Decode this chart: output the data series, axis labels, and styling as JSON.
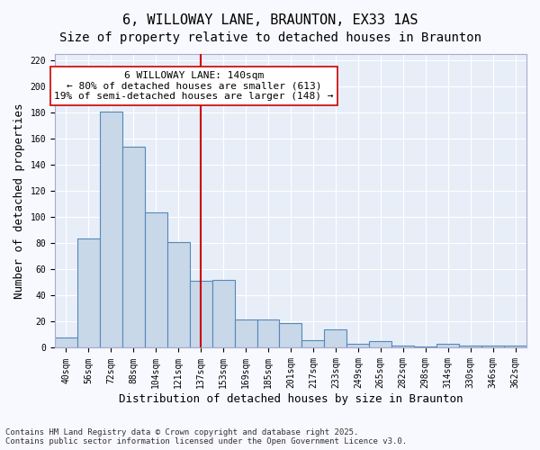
{
  "title": "6, WILLOWAY LANE, BRAUNTON, EX33 1AS",
  "subtitle": "Size of property relative to detached houses in Braunton",
  "xlabel": "Distribution of detached houses by size in Braunton",
  "ylabel": "Number of detached properties",
  "categories": [
    "40sqm",
    "56sqm",
    "72sqm",
    "88sqm",
    "104sqm",
    "121sqm",
    "137sqm",
    "153sqm",
    "169sqm",
    "185sqm",
    "201sqm",
    "217sqm",
    "233sqm",
    "249sqm",
    "265sqm",
    "282sqm",
    "298sqm",
    "314sqm",
    "330sqm",
    "346sqm",
    "362sqm"
  ],
  "values": [
    8,
    84,
    181,
    154,
    104,
    81,
    51,
    52,
    22,
    22,
    19,
    6,
    14,
    3,
    5,
    2,
    1,
    3,
    2,
    2,
    2
  ],
  "bar_color": "#c8d8e8",
  "bar_edge_color": "#5588bb",
  "background_color": "#e8eef8",
  "grid_color": "#ffffff",
  "vline_x": 6,
  "vline_color": "#cc0000",
  "annotation_text": "6 WILLOWAY LANE: 140sqm\n← 80% of detached houses are smaller (613)\n19% of semi-detached houses are larger (148) →",
  "annotation_box_color": "#ffffff",
  "annotation_box_edge": "#cc0000",
  "ylim": [
    0,
    225
  ],
  "yticks": [
    0,
    20,
    40,
    60,
    80,
    100,
    120,
    140,
    160,
    180,
    200,
    220
  ],
  "footer": "Contains HM Land Registry data © Crown copyright and database right 2025.\nContains public sector information licensed under the Open Government Licence v3.0.",
  "title_fontsize": 11,
  "subtitle_fontsize": 10,
  "xlabel_fontsize": 9,
  "ylabel_fontsize": 9,
  "tick_fontsize": 7,
  "annotation_fontsize": 8,
  "footer_fontsize": 6.5
}
